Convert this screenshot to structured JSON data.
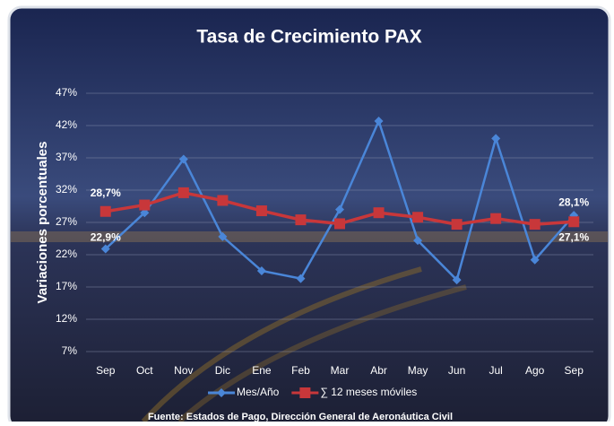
{
  "chart_data": {
    "type": "line",
    "title": "Tasa de Crecimiento PAX",
    "y_label": "Variaciones porcentuales",
    "source": "Fuente: Estados de Pago, Dirección General de Aeronáutica Civil",
    "categories": [
      "Sep",
      "Oct",
      "Nov",
      "Dic",
      "Ene",
      "Feb",
      "Mar",
      "Abr",
      "May",
      "Jun",
      "Jul",
      "Ago",
      "Sep"
    ],
    "series": [
      {
        "name": "Mes/Año",
        "color": "#4a86d8",
        "marker": "diamond",
        "values": [
          22.9,
          28.5,
          36.8,
          24.8,
          19.5,
          18.3,
          29,
          42.7,
          24.2,
          18.1,
          40,
          21.2,
          28.1
        ],
        "value_labels": [
          "22,9%",
          null,
          null,
          null,
          null,
          null,
          null,
          null,
          null,
          null,
          null,
          null,
          "28,1%"
        ]
      },
      {
        "name": "∑ 12 meses móviles",
        "color": "#c8373a",
        "marker": "square",
        "values": [
          28.7,
          29.7,
          31.6,
          30.4,
          28.8,
          27.4,
          26.8,
          28.5,
          27.8,
          26.7,
          27.6,
          26.7,
          27.1
        ],
        "value_labels": [
          "28,7%",
          null,
          null,
          null,
          null,
          null,
          null,
          null,
          null,
          null,
          null,
          null,
          "27,1%"
        ]
      }
    ],
    "ylim": [
      7,
      47
    ],
    "yticks": [
      {
        "value": 7,
        "label": "7%"
      },
      {
        "value": 12,
        "label": "12%"
      },
      {
        "value": 17,
        "label": "17%"
      },
      {
        "value": 22,
        "label": "22%"
      },
      {
        "value": 27,
        "label": "27%"
      },
      {
        "value": 32,
        "label": "32%"
      },
      {
        "value": 37,
        "label": "37%"
      },
      {
        "value": 42,
        "label": "42%"
      },
      {
        "value": 47,
        "label": "47%"
      }
    ],
    "grid": true
  }
}
